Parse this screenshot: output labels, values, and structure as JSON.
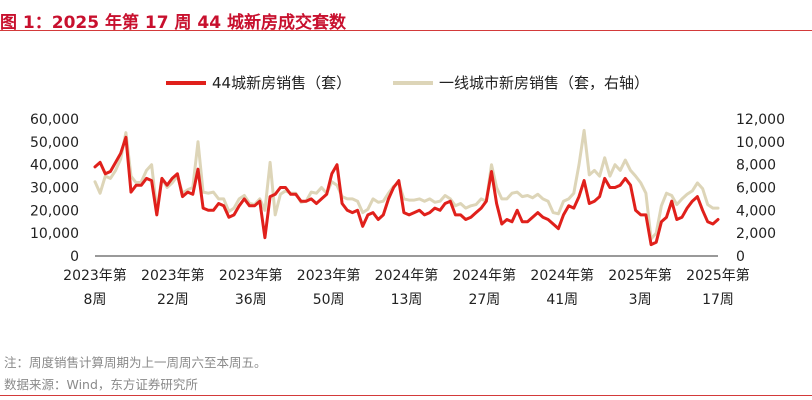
{
  "title": "图 1：2025 年第 17 周 44 城新房成交套数",
  "notes": {
    "note": "注：周度销售计算周期为上一周周六至本周五。",
    "source": "数据来源：Wind，东方证券研究所"
  },
  "chart_data": {
    "type": "line",
    "title": "",
    "legend_position": "top",
    "grid": false,
    "x_tick_labels": [
      [
        "2023年第",
        "8周"
      ],
      [
        "2023年第",
        "22周"
      ],
      [
        "2023年第",
        "36周"
      ],
      [
        "2023年第",
        "50周"
      ],
      [
        "2024年第",
        "13周"
      ],
      [
        "2024年第",
        "27周"
      ],
      [
        "2024年第",
        "41周"
      ],
      [
        "2025年第",
        "3周"
      ],
      [
        "2025年第",
        "17周"
      ]
    ],
    "y_left": {
      "min": 0,
      "max": 60000,
      "ticks": [
        "0",
        "10,000",
        "20,000",
        "30,000",
        "40,000",
        "50,000",
        "60,000"
      ]
    },
    "y_right": {
      "min": 0,
      "max": 12000,
      "ticks": [
        "0",
        "2,000",
        "4,000",
        "6,000",
        "8,000",
        "10,000",
        "12,000"
      ]
    },
    "series": [
      {
        "name": "44城新房销售（套）",
        "axis": "left",
        "color": "#e0201b",
        "values": [
          39000,
          41000,
          36000,
          37000,
          41000,
          45000,
          52000,
          28000,
          31000,
          31000,
          34000,
          33000,
          18000,
          34000,
          31000,
          34000,
          36000,
          26000,
          28000,
          27000,
          38000,
          21000,
          20000,
          20000,
          23000,
          22000,
          17000,
          18000,
          22000,
          25000,
          22000,
          22000,
          24000,
          8000,
          26000,
          27000,
          30000,
          30000,
          27000,
          27000,
          24000,
          24000,
          25000,
          23000,
          25000,
          27000,
          36000,
          40000,
          23000,
          20000,
          19000,
          20000,
          13000,
          18000,
          19000,
          16000,
          18000,
          25000,
          30000,
          33000,
          19000,
          18000,
          19000,
          20000,
          18000,
          19000,
          21000,
          20000,
          23000,
          24000,
          18000,
          18000,
          16000,
          17000,
          19000,
          21000,
          24000,
          37000,
          23000,
          14000,
          16000,
          15000,
          20000,
          15000,
          15000,
          17000,
          19000,
          17000,
          16000,
          14000,
          12000,
          18000,
          22000,
          21000,
          26000,
          33000,
          23000,
          24000,
          26000,
          34000,
          30000,
          30000,
          31000,
          34000,
          31000,
          20000,
          18000,
          18000,
          5000,
          6000,
          15000,
          17000,
          24000,
          16000,
          17000,
          21000,
          24000,
          26000,
          20000,
          15000,
          14000,
          16000
        ]
      },
      {
        "name": "一线城市新房销售（套，右轴）",
        "axis": "right",
        "color": "#ddd5b8",
        "values": [
          6500,
          5500,
          7000,
          6800,
          7500,
          8500,
          10800,
          7000,
          6400,
          6500,
          7500,
          8000,
          4000,
          6800,
          6000,
          6400,
          7000,
          5500,
          5800,
          6000,
          10000,
          5600,
          5500,
          5600,
          5000,
          5000,
          3900,
          4200,
          5000,
          5300,
          4600,
          4500,
          5000,
          4000,
          8200,
          3600,
          5400,
          5700,
          5500,
          5500,
          4700,
          4800,
          5600,
          5500,
          6000,
          5500,
          6500,
          6200,
          5200,
          5000,
          5000,
          4800,
          3800,
          4100,
          5000,
          4700,
          4800,
          5500,
          6100,
          6400,
          5000,
          4900,
          4900,
          5000,
          4800,
          5000,
          4700,
          4800,
          5300,
          5000,
          4400,
          4600,
          4200,
          4400,
          4500,
          5000,
          4800,
          8000,
          6000,
          5000,
          5000,
          5500,
          5600,
          5200,
          5300,
          5100,
          5400,
          5000,
          4800,
          3800,
          3700,
          4800,
          5000,
          5500,
          8000,
          11000,
          7100,
          7500,
          7000,
          8600,
          7000,
          8000,
          7500,
          8400,
          7500,
          7000,
          6400,
          5500,
          1500,
          2000,
          4400,
          5500,
          5300,
          4500,
          5000,
          5400,
          5700,
          6400,
          5900,
          4500,
          4200,
          4200
        ]
      }
    ]
  }
}
